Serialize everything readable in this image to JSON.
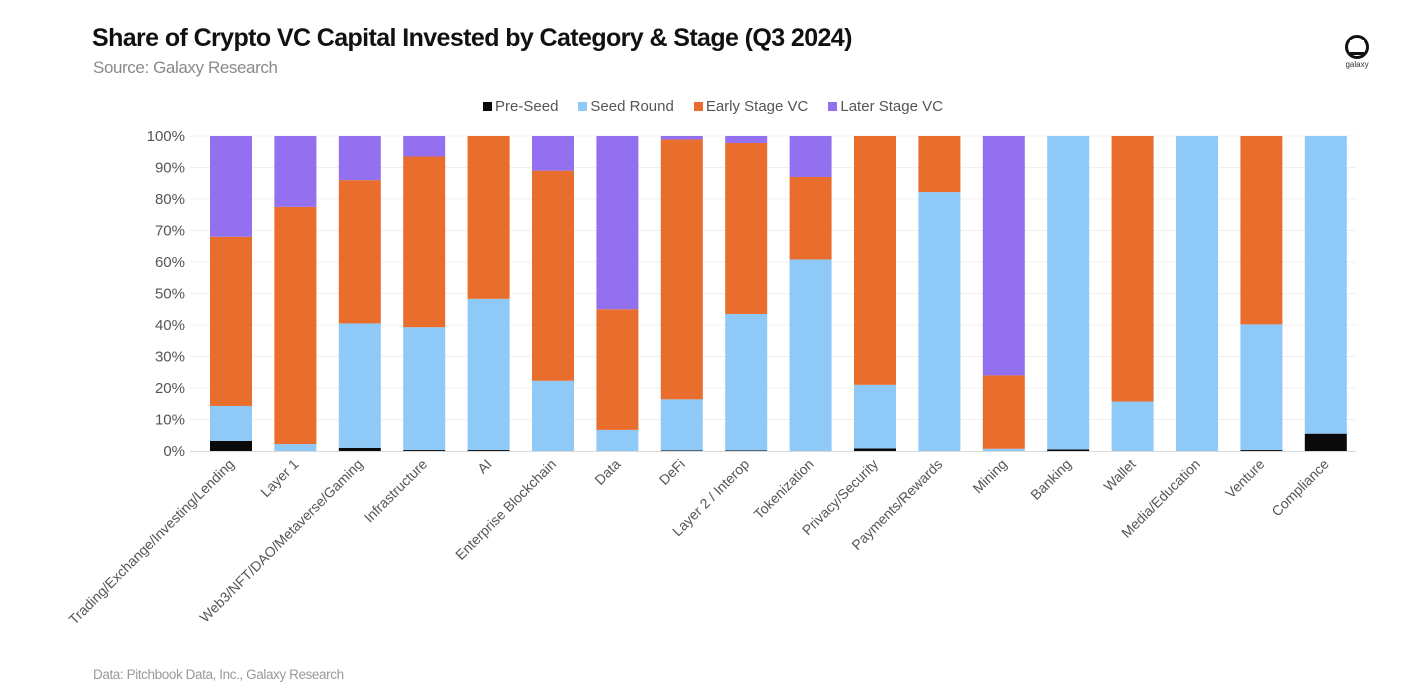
{
  "header": {
    "title": "Share of Crypto VC Capital Invested by Category & Stage (Q3 2024)",
    "subtitle": "Source: Galaxy Research"
  },
  "logo": {
    "icon": "galaxy-logo-icon",
    "text": "galaxy"
  },
  "footer": {
    "note": "Data: Pitchbook Data, Inc., Galaxy Research"
  },
  "chart_data": {
    "type": "bar",
    "stacked": true,
    "percent": true,
    "title": "Share of Crypto VC Capital Invested by Category & Stage (Q3 2024)",
    "subtitle": "Source: Galaxy Research",
    "xlabel": "",
    "ylabel": "",
    "ylim": [
      0,
      100
    ],
    "yticks": [
      "0%",
      "10%",
      "20%",
      "30%",
      "40%",
      "50%",
      "60%",
      "70%",
      "80%",
      "90%",
      "100%"
    ],
    "grid": true,
    "legend_position": "top-center",
    "categories": [
      "Trading/Exchange/Investing/Lending",
      "Layer 1",
      "Web3/NFT/DAO/Metaverse/Gaming",
      "Infrastructure",
      "AI",
      "Enterprise Blockchain",
      "Data",
      "DeFi",
      "Layer 2 / Interop",
      "Tokenization",
      "Privacy/Security",
      "Payments/Rewards",
      "Mining",
      "Banking",
      "Wallet",
      "Media/Education",
      "Venture",
      "Compliance"
    ],
    "series": [
      {
        "name": "Pre-Seed",
        "color": "#0a0a0a",
        "values": [
          3.2,
          0,
          1.0,
          0.3,
          0.3,
          0,
          0,
          0.2,
          0.2,
          0,
          0.8,
          0,
          0,
          0.5,
          0,
          0,
          0.3,
          5.5
        ]
      },
      {
        "name": "Seed Round",
        "color": "#8fc9f7",
        "values": [
          11.1,
          2.2,
          39.5,
          39.0,
          48.0,
          22.3,
          6.7,
          16.2,
          43.3,
          60.8,
          20.2,
          82.2,
          0.7,
          99.5,
          15.7,
          100,
          39.9,
          94.5
        ]
      },
      {
        "name": "Early Stage VC",
        "color": "#e96e2e",
        "values": [
          53.7,
          75.3,
          45.5,
          54.2,
          51.7,
          66.7,
          38.3,
          82.5,
          54.3,
          26.2,
          79.0,
          17.8,
          23.3,
          0,
          84.3,
          0,
          59.8,
          0
        ]
      },
      {
        "name": "Later Stage VC",
        "color": "#9370f0",
        "values": [
          32.0,
          22.5,
          14.0,
          6.5,
          0,
          11.0,
          55.0,
          1.1,
          2.2,
          13.0,
          0,
          0,
          76.0,
          0,
          0,
          0,
          0,
          0
        ]
      }
    ]
  }
}
